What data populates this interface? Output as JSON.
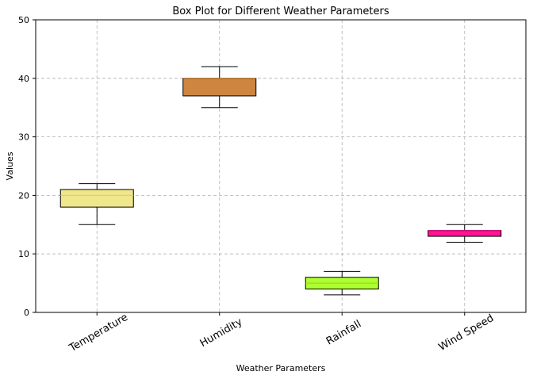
{
  "chart_data": {
    "type": "box",
    "title": "Box Plot for Different Weather Parameters",
    "xlabel": "Weather Parameters",
    "ylabel": "Values",
    "ylim": [
      0,
      50
    ],
    "yticks": [
      0,
      10,
      20,
      30,
      40,
      50
    ],
    "grid": true,
    "categories": [
      "Temperature",
      "Humidity",
      "Rainfall",
      "Wind Speed"
    ],
    "boxes": [
      {
        "whisker_low": 15,
        "q1": 18,
        "median": 20,
        "q3": 21,
        "whisker_high": 22,
        "color": "#f0e68c",
        "median_color": "#e8c070"
      },
      {
        "whisker_low": 35,
        "q1": 37,
        "median": 40,
        "q3": 40,
        "whisker_high": 42,
        "color": "#cd853f",
        "median_color": "#d08030"
      },
      {
        "whisker_low": 3,
        "q1": 4,
        "median": 5,
        "q3": 6,
        "whisker_high": 7,
        "color": "#adff2f",
        "median_color": "#9ad020"
      },
      {
        "whisker_low": 12,
        "q1": 13,
        "median": 14,
        "q3": 14,
        "whisker_high": 15,
        "color": "#ff1493",
        "median_color": "#e01080"
      }
    ]
  }
}
